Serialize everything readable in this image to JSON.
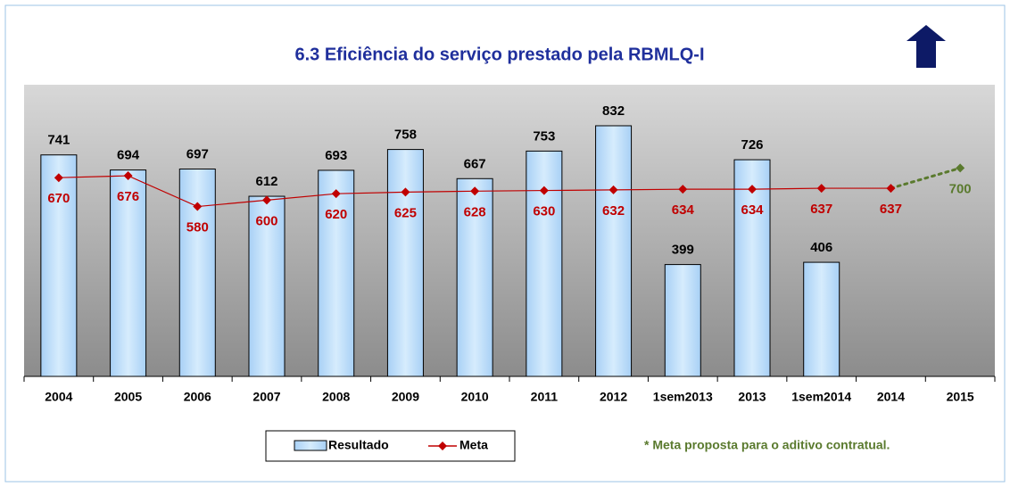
{
  "chart_data": {
    "type": "bar_line",
    "title": "6.3 Eficiência do serviço prestado pela RBMLQ-I",
    "categories": [
      "2004",
      "2005",
      "2006",
      "2007",
      "2008",
      "2009",
      "2010",
      "2011",
      "2012",
      "1sem2013",
      "2013",
      "1sem2014",
      "2014",
      "2015"
    ],
    "series": [
      {
        "name": "Resultado",
        "color": "#bfe0fb",
        "values": [
          741,
          694,
          697,
          612,
          693,
          758,
          667,
          753,
          832,
          399,
          726,
          406,
          null,
          null
        ]
      },
      {
        "name": "Meta",
        "color": "#c00000",
        "values": [
          670,
          676,
          580,
          600,
          620,
          625,
          628,
          630,
          632,
          634,
          634,
          637,
          637,
          700
        ]
      }
    ],
    "projection_color": "#5a7a2e",
    "ylim": [
      50,
      960
    ],
    "note": "* Meta proposta para o aditivo contratual."
  }
}
